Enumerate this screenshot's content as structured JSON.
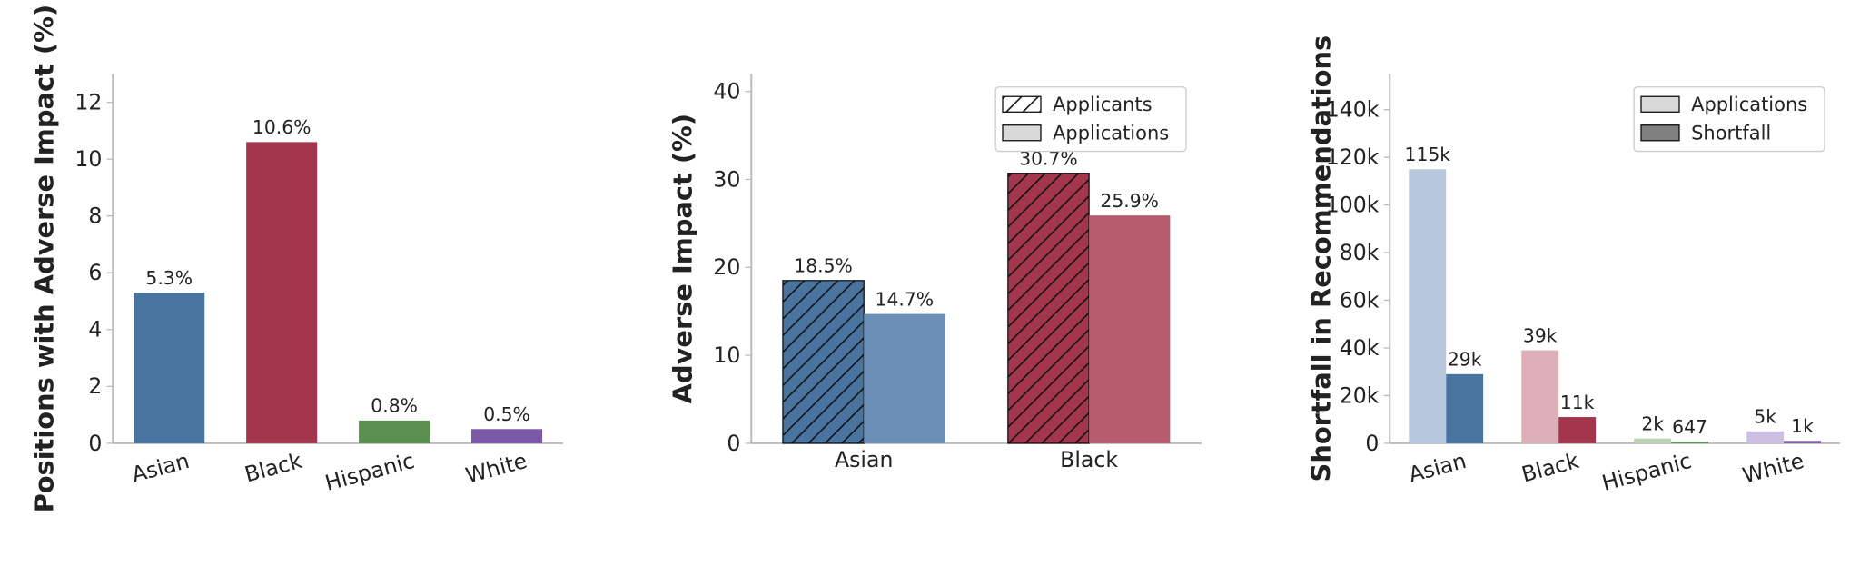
{
  "chart_data": [
    {
      "type": "bar",
      "ylabel": "Positions with Adverse Impact (%)",
      "categories": [
        "Asian",
        "Black",
        "Hispanic",
        "White"
      ],
      "values": [
        5.3,
        10.6,
        0.8,
        0.5
      ],
      "value_labels": [
        "5.3%",
        "10.6%",
        "0.8%",
        "0.5%"
      ],
      "colors": [
        "#4a74a0",
        "#a3364d",
        "#5a8f50",
        "#7c58a8"
      ],
      "ylim": [
        0,
        13
      ],
      "yticks": [
        0,
        2,
        4,
        6,
        8,
        10,
        12
      ]
    },
    {
      "type": "grouped_bar",
      "ylabel": "Adverse Impact (%)",
      "categories": [
        "Asian",
        "Black"
      ],
      "series": [
        {
          "name": "Applicants",
          "color": "#ffffff",
          "hatch": "//",
          "colors": [
            "#4a74a0",
            "#a3364d"
          ],
          "values": [
            18.5,
            30.7
          ],
          "value_labels": [
            "18.5%",
            "30.7%"
          ]
        },
        {
          "name": "Applications",
          "color": "#d9d9d9",
          "colors": [
            "#6b8fb6",
            "#b55c6e"
          ],
          "values": [
            14.7,
            25.9
          ],
          "value_labels": [
            "14.7%",
            "25.9%"
          ]
        }
      ],
      "legend": "upper right",
      "ylim": [
        0,
        42
      ],
      "yticks": [
        0,
        10,
        20,
        30,
        40
      ]
    },
    {
      "type": "grouped_bar",
      "ylabel": "Shortfall in Recommendations",
      "categories": [
        "Asian",
        "Black",
        "Hispanic",
        "White"
      ],
      "series": [
        {
          "name": "Applications",
          "color": "#d9d9d9",
          "colors": [
            "#b7c8dc",
            "#ddb0b9",
            "#bcd3b6",
            "#cdbfe1"
          ],
          "values": [
            115000,
            39000,
            2000,
            5000
          ],
          "value_labels": [
            "115k",
            "39k",
            "2k",
            "5k"
          ]
        },
        {
          "name": "Shortfall",
          "color": "#808080",
          "colors": [
            "#4a74a0",
            "#a3364d",
            "#5a8f50",
            "#7c58a8"
          ],
          "values": [
            29000,
            11000,
            647,
            1000
          ],
          "value_labels": [
            "29k",
            "11k",
            "647",
            "1k"
          ]
        }
      ],
      "legend": "upper right",
      "ylim": [
        0,
        155000
      ],
      "yticks": [
        0,
        {
          "value": 20000,
          "label": "20k"
        },
        {
          "value": 40000,
          "label": "40k"
        },
        {
          "value": 60000,
          "label": "60k"
        },
        {
          "value": 80000,
          "label": "80k"
        },
        {
          "value": 100000,
          "label": "100k"
        },
        {
          "value": 120000,
          "label": "120k"
        },
        {
          "value": 140000,
          "label": "140k"
        }
      ]
    }
  ]
}
